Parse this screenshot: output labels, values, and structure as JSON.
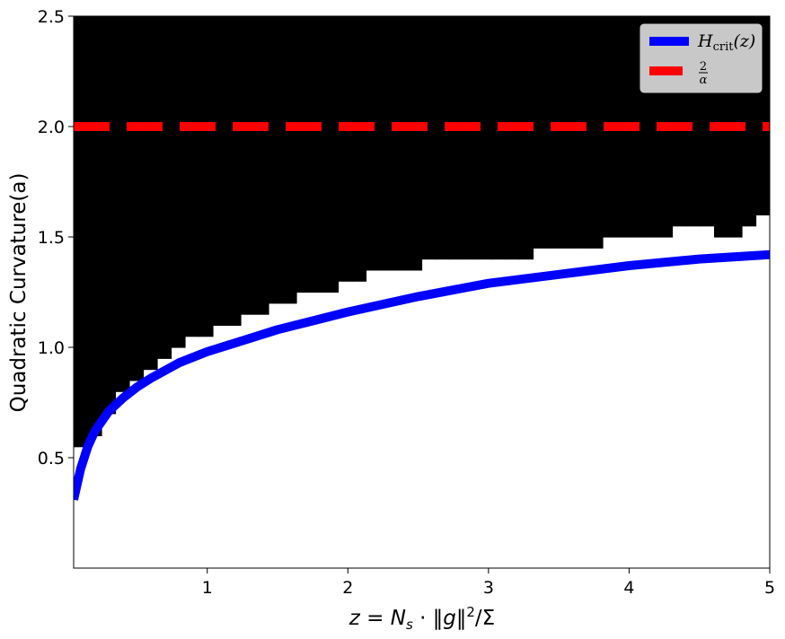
{
  "chart_data": {
    "type": "heatmap",
    "title": "",
    "xlabel": "z = N_s · ‖g‖²/Σ",
    "xlabel_parts": {
      "z": "z",
      "eq": " = ",
      "N": "N",
      "s": "s",
      "dot": " · ‖",
      "g": "g",
      "norm_close": "‖",
      "sq": "2",
      "slash_sigma": "/Σ"
    },
    "ylabel": "Quadratic Curvature(a)",
    "xlim": [
      0.05,
      5.0
    ],
    "ylim": [
      0.0,
      2.5
    ],
    "xticks": [
      1,
      2,
      3,
      4,
      5
    ],
    "xtick_labels": [
      "1",
      "2",
      "3",
      "4",
      "5"
    ],
    "yticks": [
      0.5,
      1.0,
      1.5,
      2.0,
      2.5
    ],
    "ytick_labels": [
      "0.5",
      "1.0",
      "1.5",
      "2.0",
      "2.5"
    ],
    "grid": false,
    "legend_position": "top-right",
    "heatmap": {
      "description_values": "black = cell value 1 (above threshold), white = cell value 0",
      "x_bins": 50,
      "y_bins": 50,
      "colors": {
        "high": "#000000",
        "low": "#ffffff"
      },
      "boundary_top": [
        0.55,
        0.6,
        0.7,
        0.8,
        0.85,
        0.9,
        0.95,
        1.0,
        1.05,
        1.05,
        1.1,
        1.1,
        1.15,
        1.15,
        1.2,
        1.2,
        1.25,
        1.25,
        1.25,
        1.3,
        1.3,
        1.35,
        1.35,
        1.35,
        1.35,
        1.4,
        1.4,
        1.4,
        1.4,
        1.4,
        1.4,
        1.4,
        1.4,
        1.45,
        1.45,
        1.45,
        1.45,
        1.45,
        1.5,
        1.5,
        1.5,
        1.5,
        1.5,
        1.55,
        1.55,
        1.55,
        1.5,
        1.5,
        1.55,
        1.6
      ],
      "extra_white_cells": [
        [
          2.35,
          1.5
        ],
        [
          2.55,
          1.4
        ],
        [
          4.25,
          1.55
        ],
        [
          4.35,
          1.55
        ],
        [
          4.45,
          1.55
        ],
        [
          4.25,
          1.6
        ],
        [
          4.35,
          1.6
        ],
        [
          4.55,
          1.5
        ],
        [
          4.95,
          1.6
        ]
      ],
      "extra_black_cells": [
        [
          1.55,
          1.2
        ],
        [
          1.65,
          1.2
        ],
        [
          1.95,
          1.25
        ],
        [
          2.35,
          1.3
        ],
        [
          3.25,
          1.35
        ],
        [
          3.55,
          1.35
        ],
        [
          3.85,
          1.45
        ],
        [
          4.05,
          1.45
        ],
        [
          4.15,
          1.45
        ],
        [
          4.35,
          1.45
        ],
        [
          0.35,
          0.75
        ],
        [
          0.75,
          0.95
        ],
        [
          0.85,
          1.0
        ],
        [
          4.95,
          1.55
        ],
        [
          4.35,
          1.5
        ]
      ]
    },
    "series": [
      {
        "name": "H_crit(z)",
        "style": "solid",
        "color": "#0000ff",
        "x": [
          0.05,
          0.1,
          0.15,
          0.2,
          0.3,
          0.4,
          0.5,
          0.6,
          0.8,
          1.0,
          1.25,
          1.5,
          1.75,
          2.0,
          2.5,
          3.0,
          3.5,
          4.0,
          4.5,
          5.0
        ],
        "y": [
          0.31,
          0.45,
          0.55,
          0.62,
          0.71,
          0.77,
          0.82,
          0.86,
          0.93,
          0.98,
          1.03,
          1.08,
          1.12,
          1.16,
          1.23,
          1.29,
          1.33,
          1.37,
          1.4,
          1.42
        ]
      },
      {
        "name": "2/α",
        "style": "dashed",
        "color": "#ff0000",
        "x": [
          0.05,
          5.0
        ],
        "y": [
          2.0,
          2.0
        ]
      }
    ],
    "legend_labels": {
      "h": "H",
      "crit": "crit",
      "z_arg": "(z)",
      "frac_num": "2",
      "frac_den": "α"
    },
    "legend_colors": {
      "frame": "#c8c8c8",
      "edge": "#cccccc"
    }
  }
}
